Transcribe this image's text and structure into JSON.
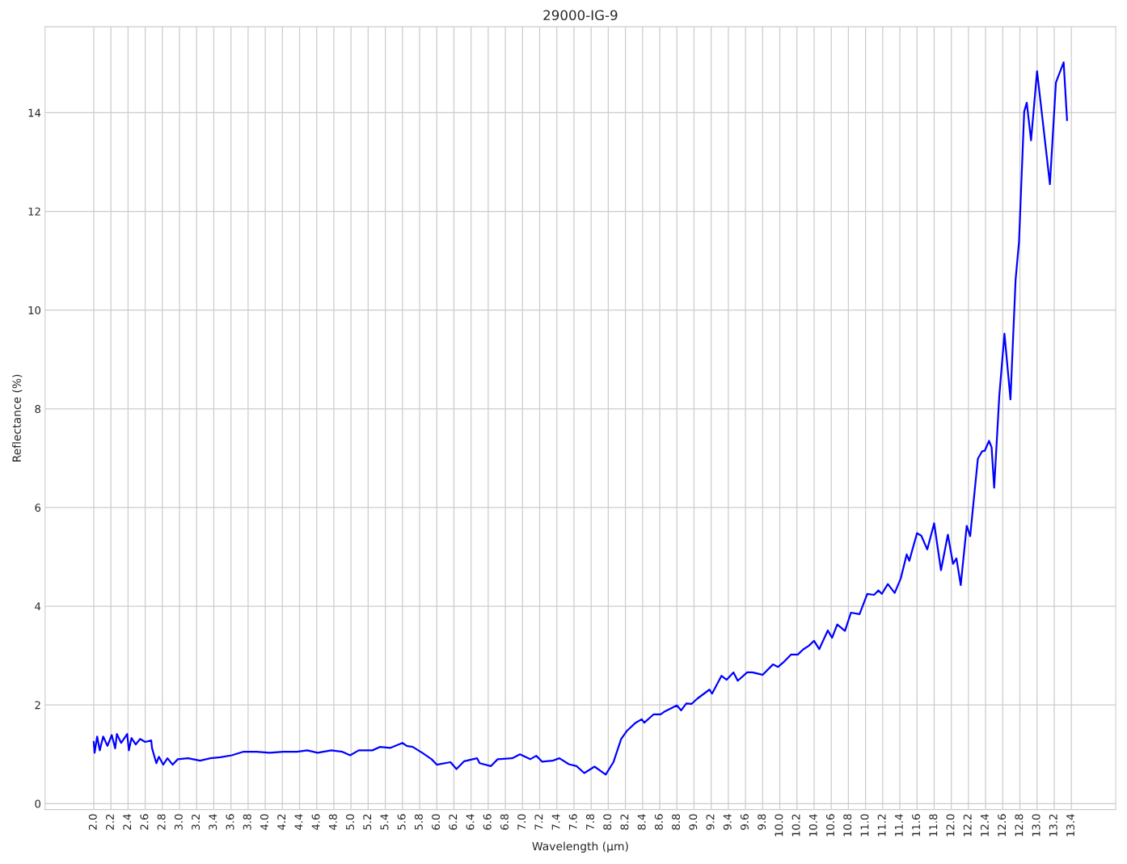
{
  "chart_data": {
    "type": "line",
    "title": "29000-IG-9",
    "xlabel": "Wavelength (µm)",
    "ylabel": "Reflectance (%)",
    "xlim": [
      1.4325,
      13.9175
    ],
    "ylim": [
      -0.12,
      15.74
    ],
    "xticks": [
      {
        "value": 2.0,
        "label": "2.0"
      },
      {
        "value": 2.2,
        "label": "2.2"
      },
      {
        "value": 2.4,
        "label": "2.4"
      },
      {
        "value": 2.6,
        "label": "2.6"
      },
      {
        "value": 2.8,
        "label": "2.8"
      },
      {
        "value": 3.0,
        "label": "3.0"
      },
      {
        "value": 3.2,
        "label": "3.2"
      },
      {
        "value": 3.4,
        "label": "3.4"
      },
      {
        "value": 3.6,
        "label": "3.6"
      },
      {
        "value": 3.8,
        "label": "3.8"
      },
      {
        "value": 4.0,
        "label": "4.0"
      },
      {
        "value": 4.2,
        "label": "4.2"
      },
      {
        "value": 4.4,
        "label": "4.4"
      },
      {
        "value": 4.6,
        "label": "4.6"
      },
      {
        "value": 4.8,
        "label": "4.8"
      },
      {
        "value": 5.0,
        "label": "5.0"
      },
      {
        "value": 5.2,
        "label": "5.2"
      },
      {
        "value": 5.4,
        "label": "5.4"
      },
      {
        "value": 5.6,
        "label": "5.6"
      },
      {
        "value": 5.8,
        "label": "5.8"
      },
      {
        "value": 6.0,
        "label": "6.0"
      },
      {
        "value": 6.2,
        "label": "6.2"
      },
      {
        "value": 6.4,
        "label": "6.4"
      },
      {
        "value": 6.6,
        "label": "6.6"
      },
      {
        "value": 6.8,
        "label": "6.8"
      },
      {
        "value": 7.0,
        "label": "7.0"
      },
      {
        "value": 7.2,
        "label": "7.2"
      },
      {
        "value": 7.4,
        "label": "7.4"
      },
      {
        "value": 7.6,
        "label": "7.6"
      },
      {
        "value": 7.8,
        "label": "7.8"
      },
      {
        "value": 8.0,
        "label": "8.0"
      },
      {
        "value": 8.2,
        "label": "8.2"
      },
      {
        "value": 8.4,
        "label": "8.4"
      },
      {
        "value": 8.6,
        "label": "8.6"
      },
      {
        "value": 8.8,
        "label": "8.8"
      },
      {
        "value": 9.0,
        "label": "9.0"
      },
      {
        "value": 9.2,
        "label": "9.2"
      },
      {
        "value": 9.4,
        "label": "9.4"
      },
      {
        "value": 9.6,
        "label": "9.6"
      },
      {
        "value": 9.8,
        "label": "9.8"
      },
      {
        "value": 10.0,
        "label": "10.0"
      },
      {
        "value": 10.2,
        "label": "10.2"
      },
      {
        "value": 10.4,
        "label": "10.4"
      },
      {
        "value": 10.6,
        "label": "10.6"
      },
      {
        "value": 10.8,
        "label": "10.8"
      },
      {
        "value": 11.0,
        "label": "11.0"
      },
      {
        "value": 11.2,
        "label": "11.2"
      },
      {
        "value": 11.4,
        "label": "11.4"
      },
      {
        "value": 11.6,
        "label": "11.6"
      },
      {
        "value": 11.8,
        "label": "11.8"
      },
      {
        "value": 12.0,
        "label": "12.0"
      },
      {
        "value": 12.2,
        "label": "12.2"
      },
      {
        "value": 12.4,
        "label": "12.4"
      },
      {
        "value": 12.6,
        "label": "12.6"
      },
      {
        "value": 12.8,
        "label": "12.8"
      },
      {
        "value": 13.0,
        "label": "13.0"
      },
      {
        "value": 13.2,
        "label": "13.2"
      },
      {
        "value": 13.4,
        "label": "13.4"
      }
    ],
    "yticks": [
      0,
      2,
      4,
      6,
      8,
      10,
      12,
      14
    ],
    "grid": true,
    "legend": false,
    "series": [
      {
        "color": "#0000ff",
        "x": [
          2.0,
          2.01,
          2.04,
          2.07,
          2.11,
          2.16,
          2.21,
          2.25,
          2.27,
          2.32,
          2.39,
          2.41,
          2.44,
          2.49,
          2.54,
          2.6,
          2.67,
          2.68,
          2.73,
          2.76,
          2.81,
          2.86,
          2.92,
          2.98,
          3.1,
          3.24,
          3.36,
          3.48,
          3.61,
          3.74,
          3.9,
          4.05,
          4.21,
          4.37,
          4.49,
          4.61,
          4.77,
          4.9,
          4.99,
          5.09,
          5.25,
          5.34,
          5.46,
          5.6,
          5.65,
          5.72,
          5.83,
          5.94,
          6.0,
          6.16,
          6.23,
          6.32,
          6.47,
          6.5,
          6.63,
          6.71,
          6.88,
          6.97,
          7.09,
          7.16,
          7.23,
          7.35,
          7.43,
          7.54,
          7.63,
          7.72,
          7.84,
          7.97,
          8.06,
          8.15,
          8.22,
          8.32,
          8.39,
          8.42,
          8.53,
          8.61,
          8.66,
          8.8,
          8.85,
          8.91,
          8.97,
          9.04,
          9.18,
          9.21,
          9.32,
          9.38,
          9.46,
          9.51,
          9.62,
          9.68,
          9.8,
          9.92,
          9.98,
          10.04,
          10.13,
          10.21,
          10.27,
          10.34,
          10.4,
          10.46,
          10.56,
          10.61,
          10.67,
          10.76,
          10.83,
          10.93,
          11.02,
          11.1,
          11.15,
          11.19,
          11.26,
          11.34,
          11.41,
          11.48,
          11.51,
          11.6,
          11.65,
          11.72,
          11.8,
          11.88,
          11.96,
          12.02,
          12.06,
          12.11,
          12.18,
          12.22,
          12.26,
          12.31,
          12.36,
          12.39,
          12.44,
          12.47,
          12.5,
          12.56,
          12.62,
          12.69,
          12.75,
          12.79,
          12.85,
          12.88,
          12.93,
          13.0,
          13.05,
          13.15,
          13.22,
          13.31,
          13.35
        ],
        "values": [
          1.25,
          1.03,
          1.36,
          1.08,
          1.36,
          1.17,
          1.39,
          1.12,
          1.41,
          1.23,
          1.41,
          1.08,
          1.33,
          1.2,
          1.31,
          1.25,
          1.28,
          1.12,
          0.82,
          0.95,
          0.79,
          0.92,
          0.79,
          0.9,
          0.92,
          0.87,
          0.92,
          0.94,
          0.98,
          1.05,
          1.05,
          1.03,
          1.05,
          1.05,
          1.08,
          1.03,
          1.08,
          1.05,
          0.98,
          1.08,
          1.08,
          1.15,
          1.13,
          1.23,
          1.17,
          1.15,
          1.03,
          0.9,
          0.79,
          0.84,
          0.7,
          0.86,
          0.92,
          0.82,
          0.76,
          0.9,
          0.92,
          1.0,
          0.9,
          0.97,
          0.85,
          0.87,
          0.92,
          0.8,
          0.76,
          0.62,
          0.75,
          0.59,
          0.84,
          1.31,
          1.48,
          1.64,
          1.71,
          1.64,
          1.81,
          1.81,
          1.87,
          1.99,
          1.89,
          2.03,
          2.02,
          2.13,
          2.31,
          2.23,
          2.59,
          2.51,
          2.66,
          2.49,
          2.66,
          2.66,
          2.61,
          2.82,
          2.77,
          2.86,
          3.02,
          3.02,
          3.12,
          3.2,
          3.3,
          3.13,
          3.51,
          3.36,
          3.63,
          3.5,
          3.87,
          3.84,
          4.25,
          4.23,
          4.32,
          4.25,
          4.45,
          4.27,
          4.56,
          5.05,
          4.92,
          5.48,
          5.43,
          5.15,
          5.68,
          4.73,
          5.45,
          4.86,
          4.97,
          4.43,
          5.63,
          5.42,
          6.12,
          6.99,
          7.14,
          7.15,
          7.35,
          7.22,
          6.4,
          8.27,
          9.52,
          8.19,
          10.62,
          11.39,
          14.02,
          14.2,
          13.44,
          14.84,
          14.08,
          12.55,
          14.61,
          15.02,
          13.85
        ]
      }
    ]
  }
}
